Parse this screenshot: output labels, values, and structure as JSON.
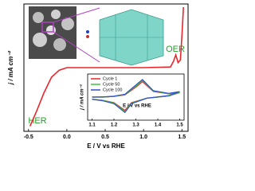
{
  "chart_data": [
    {
      "type": "line",
      "xlabel": "E / V vs RHE",
      "ylabel": "j / mA cm⁻²",
      "x": [
        -0.48,
        -0.4,
        -0.3,
        -0.2,
        -0.1,
        0,
        0.5,
        1.0,
        1.35,
        1.39,
        1.42,
        1.45,
        1.48,
        1.5,
        1.52
      ],
      "values": [
        -9.2,
        -7,
        -4,
        -1.5,
        -0.4,
        0,
        0,
        0,
        0.1,
        1,
        2,
        0.8,
        1.2,
        5,
        9.5
      ],
      "color": "#e8262c",
      "xlim": [
        -0.56,
        1.58
      ],
      "ylim": [
        -10,
        10
      ],
      "xticks": [
        -0.5,
        {
          "value": 0,
          "label": "0.0"
        },
        0.5,
        {
          "value": 1,
          "label": "1.0"
        },
        1.5
      ],
      "annotations": [
        "OER",
        "HER"
      ]
    },
    {
      "type": "line",
      "xlabel": "E / V vs RHE",
      "ylabel": "j / mA cm⁻²",
      "x": [
        1.1,
        1.15,
        1.2,
        1.25,
        1.3,
        1.33,
        1.38,
        1.45,
        1.5,
        1.45,
        1.35,
        1.28,
        1.25,
        1.2,
        1.15,
        1.1
      ],
      "series": [
        {
          "name": "Cycle 1",
          "color": "#e8262c",
          "values": [
            0.05,
            0.05,
            0.08,
            0.15,
            0.5,
            0.75,
            0.3,
            0.2,
            0.25,
            0.1,
            0,
            -0.2,
            -0.55,
            -0.2,
            -0.1,
            -0.05
          ]
        },
        {
          "name": "Cycle 50",
          "color": "#3cc23c",
          "values": [
            0.05,
            0.05,
            0.08,
            0.16,
            0.55,
            0.8,
            0.32,
            0.2,
            0.27,
            0.1,
            0,
            -0.22,
            -0.6,
            -0.22,
            -0.1,
            -0.05
          ]
        },
        {
          "name": "Cycle 100",
          "color": "#2f4fc8",
          "values": [
            0.05,
            0.06,
            0.09,
            0.18,
            0.6,
            0.85,
            0.34,
            0.22,
            0.3,
            0.12,
            0,
            -0.25,
            -0.65,
            -0.25,
            -0.12,
            -0.05
          ]
        }
      ],
      "xlim": [
        1.08,
        1.52
      ],
      "ylim": [
        -1,
        1.1
      ],
      "xticks": [
        1.1,
        1.2,
        1.3,
        1.4,
        1.5
      ]
    }
  ]
}
